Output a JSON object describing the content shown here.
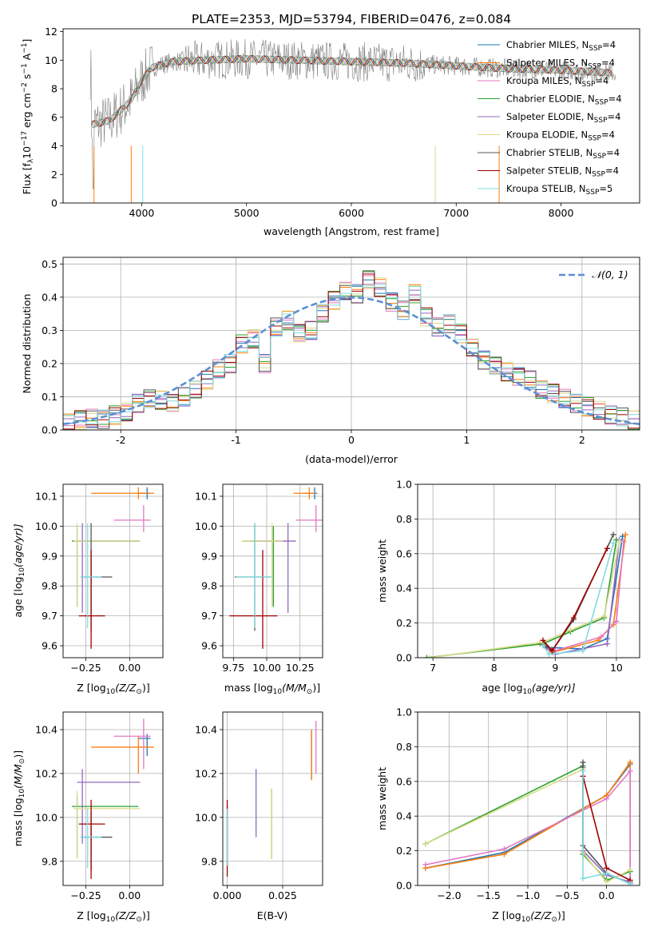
{
  "suptitle": "PLATE=2353, MJD=53794, FIBERID=0476, z=0.084",
  "colors": {
    "Chabrier MILES": "#1f77b4",
    "Salpeter MILES": "#ff7f0e",
    "Kroupa MILES": "#e377c2",
    "Chabrier ELODIE": "#2ca02c",
    "Salpeter ELODIE": "#9467bd",
    "Kroupa ELODIE": "#dbdb8d",
    "Chabrier STELIB": "#555555",
    "Salpeter STELIB": "#a00000",
    "Kroupa STELIB": "#7fdce0",
    "data": "#808080",
    "normal": "#5b8fd8",
    "grid": "#b0b0b0"
  },
  "chart_data": [
    {
      "id": "spectrum",
      "type": "line",
      "xlabel": "wavelength [Angstrom, rest frame]",
      "ylabel": "Flux [f",
      "ylabel_sub": "λ",
      "ylabel_rest": "10",
      "ylabel_exp": "−17",
      "ylabel_tail": " erg cm",
      "xlim": [
        3250,
        8750
      ],
      "ylim": [
        0,
        12.2
      ],
      "xticks": [
        4000,
        5000,
        6000,
        7000,
        8000
      ],
      "yticks": [
        0,
        2,
        4,
        6,
        8,
        10,
        12
      ],
      "grid": false,
      "legend_position": "right",
      "data_envelope": {
        "x": [
          3520,
          3600,
          3700,
          3800,
          3900,
          4000,
          4100,
          4300,
          4600,
          5000,
          5500,
          6000,
          6500,
          7000,
          7500,
          8000,
          8500
        ],
        "y": [
          5.5,
          5.6,
          5.8,
          6.5,
          7.2,
          8.6,
          9.5,
          9.9,
          10.0,
          10.1,
          10.0,
          9.9,
          9.8,
          9.6,
          9.4,
          9.3,
          9.1
        ]
      },
      "series": [
        {
          "name": "Chabrier MILES, N",
          "sub": "SSP",
          "tail": "=4"
        },
        {
          "name": "Salpeter MILES, N",
          "sub": "SSP",
          "tail": "=4"
        },
        {
          "name": "Kroupa MILES, N",
          "sub": "SSP",
          "tail": "=4"
        },
        {
          "name": "Chabrier ELODIE, N",
          "sub": "SSP",
          "tail": "=4"
        },
        {
          "name": "Salpeter ELODIE, N",
          "sub": "SSP",
          "tail": "=4"
        },
        {
          "name": "Kroupa ELODIE, N",
          "sub": "SSP",
          "tail": "=4"
        },
        {
          "name": "Chabrier STELIB, N",
          "sub": "SSP",
          "tail": "=4"
        },
        {
          "name": "Salpeter STELIB, N",
          "sub": "SSP",
          "tail": "=4"
        },
        {
          "name": "Kroupa STELIB, N",
          "sub": "SSP",
          "tail": "=5"
        }
      ]
    },
    {
      "id": "residuals",
      "type": "line",
      "xlabel": "(data-model)/error",
      "ylabel": "Normed distribution",
      "xlim": [
        -2.5,
        2.5
      ],
      "ylim": [
        0,
        0.52
      ],
      "xticks": [
        -2,
        -1,
        0,
        1,
        2
      ],
      "yticks": [
        0.0,
        0.1,
        0.2,
        0.3,
        0.4,
        0.5
      ],
      "grid": true,
      "legend_position": "top-right",
      "legend_label": "𝒩(0, 1)",
      "bins": [
        -2.5,
        -2.4,
        -2.3,
        -2.2,
        -2.1,
        -2.0,
        -1.9,
        -1.8,
        -1.7,
        -1.6,
        -1.5,
        -1.4,
        -1.3,
        -1.2,
        -1.1,
        -1.0,
        -0.9,
        -0.8,
        -0.7,
        -0.6,
        -0.5,
        -0.4,
        -0.3,
        -0.2,
        -0.1,
        0.0,
        0.1,
        0.2,
        0.3,
        0.4,
        0.5,
        0.6,
        0.7,
        0.8,
        0.9,
        1.0,
        1.1,
        1.2,
        1.3,
        1.4,
        1.5,
        1.6,
        1.7,
        1.8,
        1.9,
        2.0,
        2.1,
        2.2,
        2.3,
        2.4,
        2.5
      ],
      "hist": [
        0.02,
        0.03,
        0.035,
        0.032,
        0.045,
        0.055,
        0.08,
        0.095,
        0.09,
        0.08,
        0.1,
        0.12,
        0.15,
        0.185,
        0.2,
        0.26,
        0.275,
        0.2,
        0.31,
        0.33,
        0.29,
        0.3,
        0.35,
        0.39,
        0.42,
        0.41,
        0.455,
        0.43,
        0.385,
        0.36,
        0.41,
        0.34,
        0.31,
        0.32,
        0.29,
        0.25,
        0.21,
        0.195,
        0.175,
        0.16,
        0.15,
        0.12,
        0.11,
        0.095,
        0.08,
        0.07,
        0.06,
        0.045,
        0.04,
        0.03
      ]
    },
    {
      "id": "age_vs_Z",
      "type": "scatter",
      "xlabel": "Z [log",
      "xlabel_sub": "10",
      "xlabel_tail": "(Z/Z",
      "xlabel_sym": "⊙",
      "xlabel_end": ")]",
      "ylabel": "age  [log",
      "ylabel_sub": "10",
      "ylabel_tail": "(age/yr)]",
      "xlim": [
        -0.38,
        0.19
      ],
      "ylim": [
        9.56,
        10.14
      ],
      "xticks": [
        -0.25,
        0.0
      ],
      "xtick_labels": [
        "−0.25",
        "0.00"
      ],
      "yticks": [
        9.6,
        9.7,
        9.8,
        9.9,
        10.0,
        10.1
      ],
      "grid": true
    },
    {
      "id": "age_vs_mass",
      "type": "scatter",
      "xlabel": "mass [log",
      "xlabel_sub": "10",
      "xlabel_tail": "(M/M",
      "xlabel_sym": "⊙",
      "xlabel_end": ")]",
      "xlim": [
        9.67,
        10.42
      ],
      "ylim": [
        9.56,
        10.14
      ],
      "xticks": [
        9.75,
        10.0,
        10.25
      ],
      "xtick_labels": [
        "9.75",
        "10.00",
        "10.25"
      ],
      "yticks": [
        9.6,
        9.7,
        9.8,
        9.9,
        10.0,
        10.1
      ],
      "grid": true
    },
    {
      "id": "weight_vs_age",
      "type": "line",
      "xlabel": "age  [log",
      "xlabel_sub": "10",
      "xlabel_tail": "(age/yr)]",
      "ylabel": "mass weight",
      "xlim": [
        6.75,
        10.38
      ],
      "ylim": [
        0,
        1
      ],
      "xticks": [
        7,
        8,
        9,
        10
      ],
      "yticks": [
        0.0,
        0.2,
        0.4,
        0.6,
        0.8,
        1.0
      ],
      "grid": true
    },
    {
      "id": "mass_vs_Z",
      "type": "scatter",
      "xlabel": "Z [log",
      "xlabel_sub": "10",
      "xlabel_tail": "(Z/Z",
      "xlabel_sym": "⊙",
      "xlabel_end": ")]",
      "ylabel": "mass [log",
      "ylabel_sub": "10",
      "ylabel_tail": "(M/M",
      "ylabel_sym": "⊙",
      "ylabel_end": ")]",
      "xlim": [
        -0.38,
        0.19
      ],
      "ylim": [
        9.69,
        10.48
      ],
      "xticks": [
        -0.25,
        0.0
      ],
      "xtick_labels": [
        "−0.25",
        "0.00"
      ],
      "yticks": [
        9.8,
        10.0,
        10.2,
        10.4
      ],
      "grid": true
    },
    {
      "id": "mass_vs_ebv",
      "type": "scatter",
      "xlabel": "E(B-V)",
      "xlim": [
        -0.002,
        0.043
      ],
      "ylim": [
        9.69,
        10.48
      ],
      "xticks": [
        0.0,
        0.025
      ],
      "xtick_labels": [
        "0.000",
        "0.025"
      ],
      "yticks": [
        9.8,
        10.0,
        10.2,
        10.4
      ],
      "grid": true
    },
    {
      "id": "weight_vs_Z",
      "type": "line",
      "xlabel": "Z [log",
      "xlabel_sub": "10",
      "xlabel_tail": "(Z/Z",
      "xlabel_sym": "⊙",
      "xlabel_end": ")]",
      "ylabel": "mass weight",
      "xlim": [
        -2.4,
        0.42
      ],
      "ylim": [
        0,
        1
      ],
      "xticks": [
        -2.0,
        -1.5,
        -1.0,
        -0.5,
        0.0
      ],
      "xtick_labels": [
        "−2.0",
        "−1.5",
        "−1.0",
        "−0.5",
        "0.0"
      ],
      "yticks": [
        0.0,
        0.2,
        0.4,
        0.6,
        0.8,
        1.0
      ],
      "grid": true
    }
  ],
  "fits": [
    {
      "name": "Chabrier MILES",
      "Z": 0.1,
      "Zlo": 0.05,
      "Zhi": 0.12,
      "age": 10.11,
      "agelo": 10.09,
      "agehi": 10.13,
      "mass": 10.36,
      "masslo": 10.28,
      "masshi": 10.38,
      "ebv": 0.038,
      "ebvlo": 10.17,
      "ebvhi": 10.4
    },
    {
      "name": "Salpeter MILES",
      "Z": 0.05,
      "Zlo": -0.22,
      "Zhi": 0.14,
      "age": 10.11,
      "agelo": 10.09,
      "agehi": 10.13,
      "mass": 10.32,
      "masslo": 10.2,
      "masshi": 10.37,
      "ebv": 0.038,
      "ebvlo": 10.17,
      "ebvhi": 10.4
    },
    {
      "name": "Kroupa MILES",
      "Z": 0.08,
      "Zlo": -0.09,
      "Zhi": 0.12,
      "age": 10.02,
      "agelo": 9.98,
      "agehi": 10.07,
      "mass": 10.37,
      "masslo": 10.22,
      "masshi": 10.45,
      "ebv": 0.04,
      "ebvlo": 10.2,
      "ebvhi": 10.44
    },
    {
      "name": "Chabrier ELODIE",
      "Z": -0.3,
      "Zlo": -0.33,
      "Zhi": 0.05,
      "age": 9.95,
      "agelo": 9.73,
      "agehi": 10.0,
      "mass": 10.05,
      "masslo": 9.82,
      "masshi": 10.1,
      "ebv": 0.02,
      "ebvlo": 9.81,
      "ebvhi": 10.13
    },
    {
      "name": "Salpeter ELODIE",
      "Z": -0.27,
      "Zlo": -0.3,
      "Zhi": 0.06,
      "age": 9.95,
      "agelo": 9.71,
      "agehi": 10.01,
      "mass": 10.16,
      "masslo": 9.88,
      "masshi": 10.22,
      "ebv": 0.013,
      "ebvlo": 9.91,
      "ebvhi": 10.22
    },
    {
      "name": "Kroupa ELODIE",
      "Z": -0.3,
      "Zlo": -0.32,
      "Zhi": 0.06,
      "age": 9.95,
      "agelo": 9.73,
      "agehi": 10.01,
      "mass": 10.04,
      "masslo": 9.81,
      "masshi": 10.12,
      "ebv": 0.02,
      "ebvlo": 9.81,
      "ebvhi": 10.13
    },
    {
      "name": "Chabrier STELIB",
      "Z": -0.22,
      "Zlo": -0.28,
      "Zhi": -0.1,
      "age": 9.83,
      "agelo": 9.65,
      "agehi": 10.01,
      "mass": 9.91,
      "masslo": 9.76,
      "masshi": 10.03,
      "ebv": 0.0,
      "ebvlo": 9.78,
      "ebvhi": 10.05
    },
    {
      "name": "Salpeter STELIB",
      "Z": -0.22,
      "Zlo": -0.29,
      "Zhi": -0.14,
      "age": 9.7,
      "agelo": 9.59,
      "agehi": 9.92,
      "mass": 9.97,
      "masslo": 9.72,
      "masshi": 10.08,
      "ebv": 0.0,
      "ebvlo": 9.73,
      "ebvhi": 10.08
    },
    {
      "name": "Kroupa STELIB",
      "Z": -0.24,
      "Zlo": -0.28,
      "Zhi": -0.16,
      "age": 9.83,
      "agelo": 9.66,
      "agehi": 10.01,
      "mass": 9.91,
      "masslo": 9.77,
      "masshi": 10.04,
      "ebv": 0.0,
      "ebvlo": 9.78,
      "ebvhi": 10.04
    }
  ],
  "ssp_age": [
    {
      "name": "Chabrier MILES",
      "pts": [
        [
          8.85,
          0.06
        ],
        [
          9.45,
          0.05
        ],
        [
          9.85,
          0.11
        ],
        [
          10.1,
          0.7
        ]
      ]
    },
    {
      "name": "Salpeter MILES",
      "pts": [
        [
          8.75,
          0.08
        ],
        [
          8.95,
          0.03
        ],
        [
          9.7,
          0.1
        ],
        [
          9.95,
          0.19
        ],
        [
          10.15,
          0.71
        ]
      ]
    },
    {
      "name": "Kroupa MILES",
      "pts": [
        [
          8.8,
          0.08
        ],
        [
          9.0,
          0.04
        ],
        [
          9.75,
          0.12
        ],
        [
          10.0,
          0.21
        ],
        [
          10.12,
          0.67
        ]
      ]
    },
    {
      "name": "Chabrier ELODIE",
      "pts": [
        [
          6.9,
          0.0
        ],
        [
          8.8,
          0.08
        ],
        [
          9.25,
          0.15
        ],
        [
          9.8,
          0.23
        ],
        [
          10.0,
          0.68
        ]
      ]
    },
    {
      "name": "Salpeter ELODIE",
      "pts": [
        [
          8.8,
          0.07
        ],
        [
          9.0,
          0.02
        ],
        [
          9.85,
          0.08
        ],
        [
          10.05,
          0.68
        ]
      ]
    },
    {
      "name": "Kroupa ELODIE",
      "pts": [
        [
          6.95,
          0.0
        ],
        [
          8.8,
          0.09
        ],
        [
          9.25,
          0.16
        ],
        [
          9.8,
          0.24
        ],
        [
          10.05,
          0.67
        ]
      ]
    },
    {
      "name": "Chabrier STELIB",
      "pts": [
        [
          8.85,
          0.07
        ],
        [
          8.95,
          0.04
        ],
        [
          9.3,
          0.22
        ],
        [
          9.95,
          0.71
        ]
      ]
    },
    {
      "name": "Salpeter STELIB",
      "pts": [
        [
          8.8,
          0.1
        ],
        [
          8.95,
          0.04
        ],
        [
          9.3,
          0.23
        ],
        [
          9.85,
          0.63
        ]
      ]
    },
    {
      "name": "Kroupa STELIB",
      "pts": [
        [
          8.8,
          0.07
        ],
        [
          8.9,
          0.02
        ],
        [
          9.45,
          0.04
        ],
        [
          9.95,
          0.66
        ]
      ]
    }
  ],
  "ssp_Z": [
    {
      "name": "Chabrier MILES",
      "pts": [
        [
          -2.3,
          0.1
        ],
        [
          -1.3,
          0.19
        ],
        [
          0.0,
          0.52
        ],
        [
          0.3,
          0.7
        ],
        [
          0.3,
          0.01
        ]
      ]
    },
    {
      "name": "Salpeter MILES",
      "pts": [
        [
          -2.3,
          0.1
        ],
        [
          -1.3,
          0.18
        ],
        [
          0.0,
          0.52
        ],
        [
          0.3,
          0.71
        ],
        [
          0.3,
          0.02
        ]
      ]
    },
    {
      "name": "Kroupa MILES",
      "pts": [
        [
          -2.3,
          0.12
        ],
        [
          -1.3,
          0.21
        ],
        [
          0.0,
          0.5
        ],
        [
          0.3,
          0.66
        ],
        [
          0.3,
          0.03
        ]
      ]
    },
    {
      "name": "Chabrier ELODIE",
      "pts": [
        [
          -2.3,
          0.24
        ],
        [
          -0.3,
          0.69
        ],
        [
          -0.3,
          0.18
        ],
        [
          0.0,
          0.03
        ],
        [
          0.3,
          0.08
        ]
      ]
    },
    {
      "name": "Salpeter ELODIE",
      "pts": [
        [
          -0.3,
          0.68
        ],
        [
          -0.3,
          0.2
        ],
        [
          0.0,
          0.06
        ],
        [
          0.3,
          0.02
        ]
      ]
    },
    {
      "name": "Kroupa ELODIE",
      "pts": [
        [
          -2.3,
          0.24
        ],
        [
          -0.3,
          0.67
        ],
        [
          -0.3,
          0.19
        ],
        [
          0.0,
          0.02
        ],
        [
          0.3,
          0.09
        ]
      ]
    },
    {
      "name": "Chabrier STELIB",
      "pts": [
        [
          -0.3,
          0.71
        ],
        [
          -0.3,
          0.23
        ],
        [
          0.0,
          0.07
        ],
        [
          0.3,
          0.01
        ]
      ]
    },
    {
      "name": "Salpeter STELIB",
      "pts": [
        [
          -0.3,
          0.63
        ],
        [
          0.0,
          0.1
        ],
        [
          0.3,
          0.03
        ]
      ]
    },
    {
      "name": "Kroupa STELIB",
      "pts": [
        [
          -0.3,
          0.66
        ],
        [
          -0.3,
          0.04
        ],
        [
          0.0,
          0.07
        ],
        [
          0.3,
          0.01
        ]
      ]
    }
  ]
}
